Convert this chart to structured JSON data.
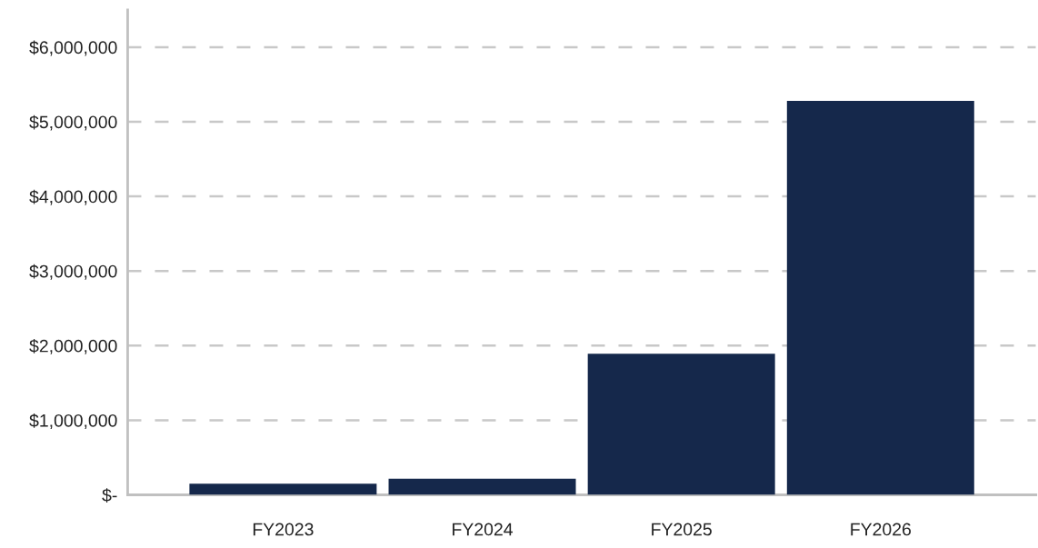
{
  "chart_data": {
    "type": "bar",
    "categories": [
      "FY2023",
      "FY2024",
      "FY2025",
      "FY2026"
    ],
    "series": [
      {
        "color": "#15284b",
        "values": [
          150000,
          215000,
          1890000,
          5280000
        ]
      }
    ],
    "ylim": [
      0,
      6500000
    ],
    "yticks": [
      {
        "value": 0,
        "label": "$-"
      },
      {
        "value": 1000000,
        "label": "$1,000,000"
      },
      {
        "value": 2000000,
        "label": "$2,000,000"
      },
      {
        "value": 3000000,
        "label": "$3,000,000"
      },
      {
        "value": 4000000,
        "label": "$4,000,000"
      },
      {
        "value": 5000000,
        "label": "$5,000,000"
      },
      {
        "value": 6000000,
        "label": "$6,000,000"
      }
    ],
    "grid": "y"
  }
}
